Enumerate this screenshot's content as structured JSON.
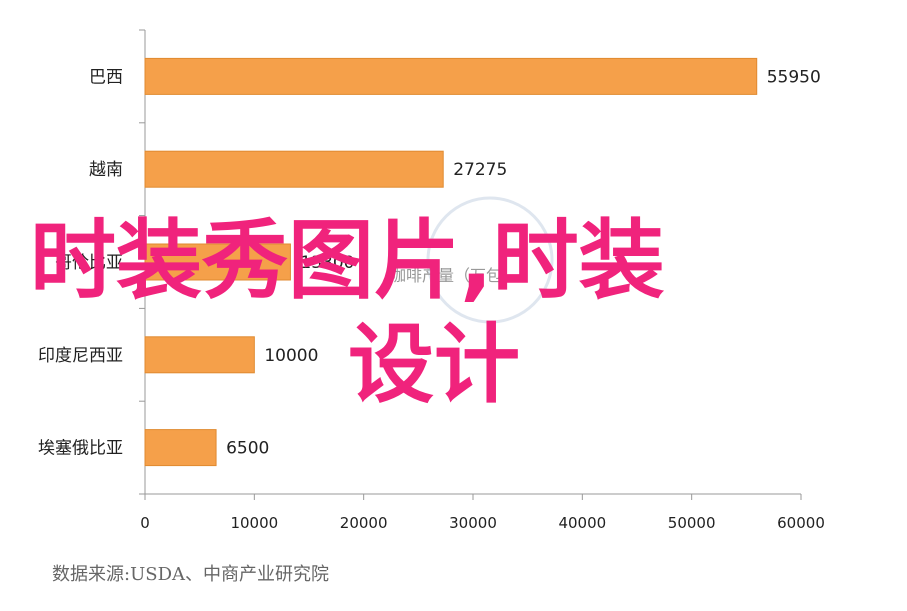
{
  "chart_data": {
    "type": "bar",
    "orientation": "horizontal",
    "categories": [
      "巴西",
      "越南",
      "哥伦比亚",
      "印度尼西亚",
      "埃塞俄比亚"
    ],
    "values": [
      55950,
      27275,
      13300,
      10000,
      6500
    ],
    "xlim": [
      0,
      60000
    ],
    "xticks": [
      "0",
      "10000",
      "20000",
      "30000",
      "40000",
      "50000",
      "60000"
    ],
    "bar_color": "#f5a04a",
    "grid": false
  },
  "source": "数据来源:USDA、中商产业研究院",
  "overlay": {
    "line1": "时装秀图片,时装",
    "line2": "设计",
    "color": "#f0237c"
  },
  "watermark": {
    "label": "咖啡产量（万包）"
  }
}
